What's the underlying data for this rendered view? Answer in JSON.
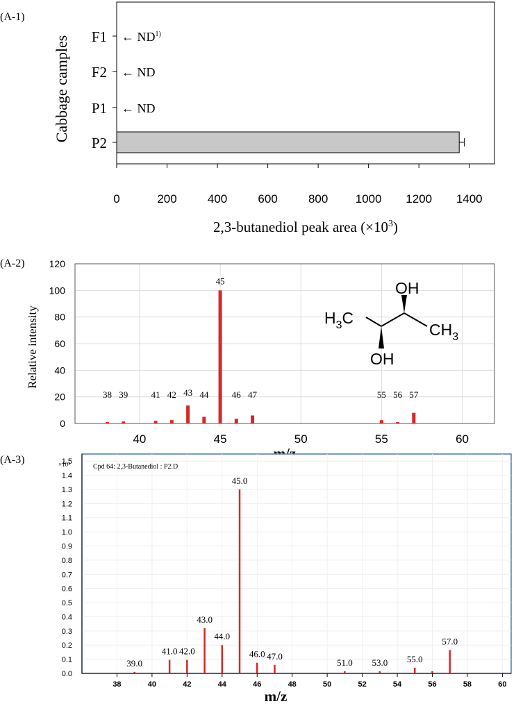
{
  "chart_data": [
    {
      "panel_label": "(A-1)",
      "type": "bar",
      "orientation": "horizontal",
      "title": "",
      "xlabel": "2,3-butanediol  peak area (×10",
      "xlabel_sup": "3",
      "xlabel_close": ")",
      "ylabel": "Cabbage camples",
      "categories": [
        "F1",
        "F2",
        "P1",
        "P2"
      ],
      "values": [
        0,
        0,
        0,
        1360
      ],
      "error": [
        0,
        0,
        0,
        20
      ],
      "annotations": [
        "← ND",
        "← ND",
        "← ND",
        ""
      ],
      "annotation_sup": "1)",
      "xlim": [
        0,
        1500
      ],
      "xticks": [
        0,
        200,
        400,
        600,
        800,
        1000,
        1200,
        1400
      ],
      "bar_color": "#c8c8c8",
      "grid": false
    },
    {
      "panel_label": "(A-2)",
      "type": "bar",
      "title": "",
      "xlabel": "m/z",
      "ylabel": "Relative intensity",
      "xlim": [
        36,
        62
      ],
      "ylim": [
        0,
        120
      ],
      "xticks": [
        40,
        45,
        50,
        55,
        60
      ],
      "yticks": [
        0,
        20,
        40,
        60,
        80,
        100,
        120
      ],
      "x": [
        38,
        39,
        41,
        42,
        43,
        44,
        45,
        46,
        47,
        55,
        56,
        57
      ],
      "values": [
        1,
        1.5,
        2,
        2.5,
        13.5,
        5,
        100,
        3.5,
        6,
        2.5,
        1,
        8
      ],
      "labels": [
        "38",
        "39",
        "41",
        "42",
        "43",
        "44",
        "45",
        "46",
        "47",
        "55",
        "56",
        "57"
      ],
      "bar_color": "#d62828",
      "grid": true,
      "structure": {
        "left_group": "H3C",
        "top_group": "OH",
        "bottom_group": "OH",
        "right_group": "CH3"
      }
    },
    {
      "panel_label": "(A-3)",
      "type": "bar",
      "title": "Cpd 64: 2,3-Butanediol : P2.D",
      "xlabel": "m/z",
      "ylabel": "",
      "y_multiplier": "×10⁴",
      "xlim": [
        36,
        60.5
      ],
      "ylim": [
        0,
        1.55
      ],
      "xticks": [
        38,
        40,
        42,
        44,
        46,
        48,
        50,
        52,
        54,
        56,
        58,
        60
      ],
      "yticks": [
        "0.0",
        "0.1",
        "0.2",
        "0.3",
        "0.4",
        "0.5",
        "0.6",
        "0.7",
        "0.8",
        "0.9",
        "1.0",
        "1.1",
        "1.2",
        "1.3",
        "1.4",
        "1.5"
      ],
      "x": [
        39,
        41,
        42,
        43,
        44,
        45,
        46,
        47,
        51,
        53,
        55,
        56,
        57
      ],
      "values": [
        0.01,
        0.095,
        0.095,
        0.32,
        0.2,
        1.3,
        0.075,
        0.06,
        0.015,
        0.015,
        0.04,
        0.015,
        0.165
      ],
      "labels": [
        "39.0",
        "41.0",
        "42.0",
        "43.0",
        "44.0",
        "45.0",
        "46.0",
        "47.0",
        "51.0",
        "53.0",
        "55.0",
        "",
        "57.0"
      ],
      "bar_color": "#d62828",
      "frame_color": "#4a7ab0",
      "grid": true
    }
  ]
}
